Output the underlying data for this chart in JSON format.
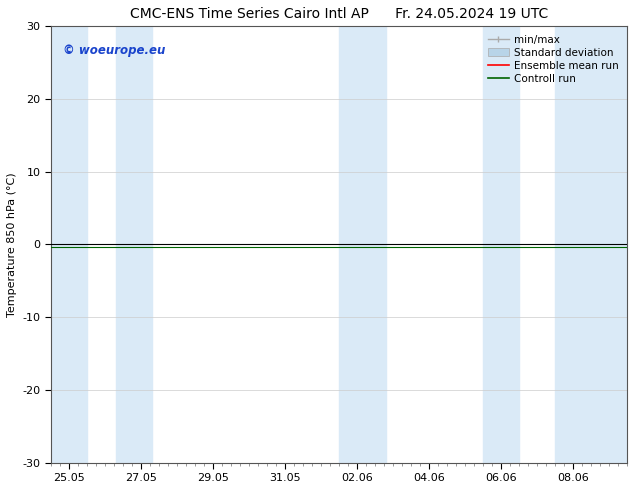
{
  "title_left": "CMC-ENS Time Series Cairo Intl AP",
  "title_right": "Fr. 24.05.2024 19 UTC",
  "ylabel": "Temperature 850 hPa (°C)",
  "ylim": [
    -30,
    30
  ],
  "yticks": [
    -30,
    -20,
    -10,
    0,
    10,
    20,
    30
  ],
  "x_tick_labels": [
    "25.05",
    "27.05",
    "29.05",
    "31.05",
    "02.06",
    "04.06",
    "06.06",
    "08.06"
  ],
  "x_tick_positions": [
    0,
    2,
    4,
    6,
    8,
    10,
    12,
    14
  ],
  "x_min": -0.5,
  "x_max": 15.5,
  "watermark": "© woeurope.eu",
  "watermark_color": "#1a44cc",
  "bg_color": "#ffffff",
  "shaded_band_color": "#daeaf7",
  "shaded_regions": [
    [
      -0.5,
      0.5
    ],
    [
      1.3,
      2.3
    ],
    [
      7.5,
      8.0
    ],
    [
      8.0,
      8.8
    ],
    [
      11.5,
      12.5
    ],
    [
      13.5,
      15.5
    ]
  ],
  "flat_line_color_black": "#000000",
  "flat_line_color_green": "#006400",
  "legend_items": [
    {
      "label": "min/max",
      "color": "#aaaaaa"
    },
    {
      "label": "Standard deviation",
      "color": "#b8d4e8"
    },
    {
      "label": "Ensemble mean run",
      "color": "#ff0000"
    },
    {
      "label": "Controll run",
      "color": "#006400"
    }
  ],
  "title_fontsize": 10,
  "axis_label_fontsize": 8,
  "tick_fontsize": 8,
  "legend_fontsize": 7.5
}
